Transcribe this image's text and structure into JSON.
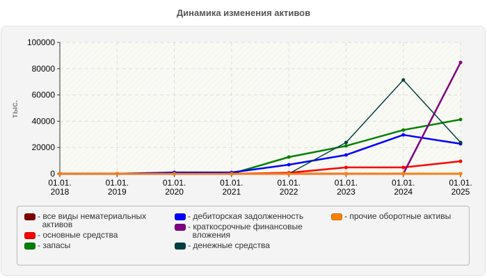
{
  "chart_data": {
    "type": "line",
    "title": "Динамика изменения активов",
    "xlabel": "",
    "ylabel": "тыс.",
    "ylim": [
      0,
      100000
    ],
    "yticks": [
      "0",
      "20000",
      "40000",
      "60000",
      "80000",
      "100000"
    ],
    "categories": [
      "01.01.\n2018",
      "01.01.\n2019",
      "01.01.\n2020",
      "01.01.\n2021",
      "01.01.\n2022",
      "01.01.\n2023",
      "01.01.\n2024",
      "01.01.\n2025"
    ],
    "category_lines": [
      [
        "01.01.",
        "2018"
      ],
      [
        "01.01.",
        "2019"
      ],
      [
        "01.01.",
        "2020"
      ],
      [
        "01.01.",
        "2021"
      ],
      [
        "01.01.",
        "2022"
      ],
      [
        "01.01.",
        "2023"
      ],
      [
        "01.01.",
        "2024"
      ],
      [
        "01.01.",
        "2025"
      ]
    ],
    "grid": true,
    "legend_position": "bottom",
    "series": [
      {
        "name": "все виды нематериальных активов",
        "color": "#800000",
        "values": [
          0,
          0,
          0,
          0,
          0,
          0,
          0,
          0
        ]
      },
      {
        "name": "основные средства",
        "color": "#ff0000",
        "values": [
          0,
          0,
          0,
          0,
          700,
          4800,
          4800,
          9500
        ]
      },
      {
        "name": "запасы",
        "color": "#008000",
        "values": [
          0,
          0,
          0,
          0,
          12700,
          21200,
          33300,
          41300
        ]
      },
      {
        "name": "дебиторская задолженность",
        "color": "#0000ff",
        "values": [
          0,
          0,
          1000,
          1000,
          6900,
          14300,
          29600,
          22800
        ]
      },
      {
        "name": "краткосрочные финансовые вложения",
        "color": "#800080",
        "values": [
          0,
          0,
          0,
          0,
          0,
          0,
          0,
          84700
        ]
      },
      {
        "name": "денежные средства",
        "color": "#004040",
        "values": [
          0,
          0,
          0,
          0,
          0,
          23800,
          71400,
          23800
        ]
      },
      {
        "name": "прочие оборотные активы",
        "color": "#ff8000",
        "values": [
          0,
          0,
          0,
          0,
          0,
          0,
          0,
          0
        ]
      }
    ]
  },
  "legend": {
    "columns": [
      [
        {
          "lines": [
            "все виды нематериальных",
            "активов"
          ],
          "color": "#800000"
        },
        {
          "lines": [
            "основные средства"
          ],
          "color": "#ff0000"
        },
        {
          "lines": [
            "запасы"
          ],
          "color": "#008000"
        }
      ],
      [
        {
          "lines": [
            "дебиторская задолженность"
          ],
          "color": "#0000ff"
        },
        {
          "lines": [
            "краткосрочные финансовые",
            "вложения"
          ],
          "color": "#800080"
        },
        {
          "lines": [
            "денежные средства"
          ],
          "color": "#004040"
        }
      ],
      [
        {
          "lines": [
            "прочие оборотные активы"
          ],
          "color": "#ff8000"
        }
      ]
    ]
  }
}
